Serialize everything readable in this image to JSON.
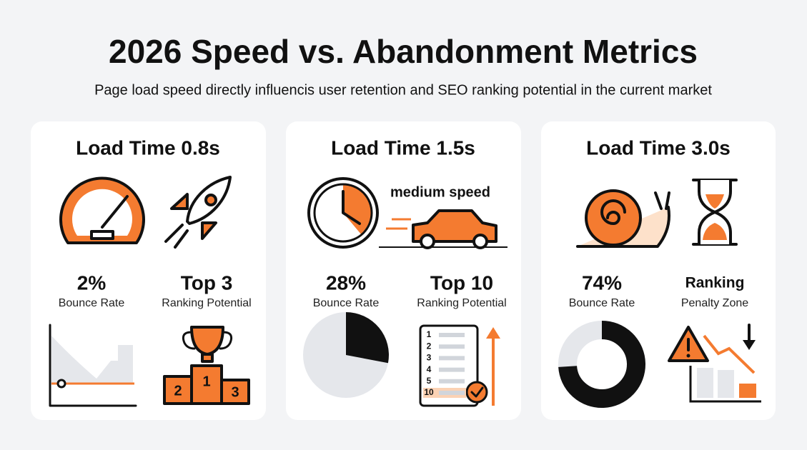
{
  "title": "2026 Speed vs. Abandonment Metrics",
  "subtitle": "Page load speed directly influencis user retention and SEO ranking potential in the current market",
  "cards": [
    {
      "heading": "Load Time 0.8s",
      "bounce": {
        "value": 2,
        "label": "2%"
      },
      "bounce_label": "Bounce Rate",
      "ranking": "Top 3",
      "ranking_label": "Ranking Potential",
      "podium": [
        "2",
        "1",
        "3"
      ]
    },
    {
      "heading": "Load Time 1.5s",
      "speed_label": "medium speed",
      "bounce": {
        "value": 28,
        "label": "28%"
      },
      "bounce_label": "Bounce Rate",
      "ranking": "Top 10",
      "ranking_label": "Ranking Potential",
      "rank_list": [
        "1",
        "2",
        "3",
        "4",
        "5",
        "10"
      ]
    },
    {
      "heading": "Load Time 3.0s",
      "bounce": {
        "value": 74,
        "label": "74%"
      },
      "bounce_label": "Bounce Rate",
      "ranking": "Ranking",
      "ranking_label": "Penalty Zone"
    }
  ]
}
